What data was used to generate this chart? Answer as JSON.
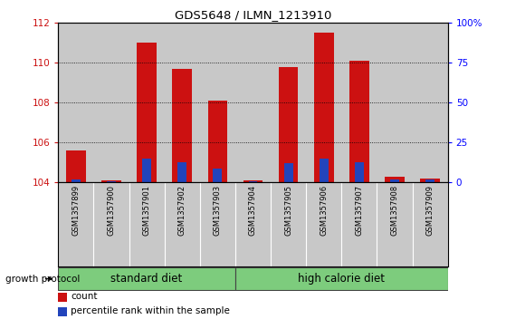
{
  "title": "GDS5648 / ILMN_1213910",
  "samples": [
    "GSM1357899",
    "GSM1357900",
    "GSM1357901",
    "GSM1357902",
    "GSM1357903",
    "GSM1357904",
    "GSM1357905",
    "GSM1357906",
    "GSM1357907",
    "GSM1357908",
    "GSM1357909"
  ],
  "count_values": [
    105.6,
    104.1,
    111.0,
    109.7,
    108.1,
    104.1,
    109.8,
    111.5,
    110.1,
    104.3,
    104.2
  ],
  "percentile_values": [
    2,
    1,
    15,
    13,
    9,
    1,
    12,
    15,
    13,
    2,
    2
  ],
  "ylim_left": [
    104,
    112
  ],
  "ylim_right": [
    0,
    100
  ],
  "yticks_left": [
    104,
    106,
    108,
    110,
    112
  ],
  "yticks_right": [
    0,
    25,
    50,
    75,
    100
  ],
  "ytick_labels_right": [
    "0",
    "25",
    "50",
    "75",
    "100%"
  ],
  "bar_bottom": 104,
  "count_color": "#cc1111",
  "percentile_color": "#2244bb",
  "bg_color_samples": "#c8c8c8",
  "group1_label": "standard diet",
  "group2_label": "high calorie diet",
  "group1_indices": [
    0,
    1,
    2,
    3,
    4
  ],
  "group2_indices": [
    5,
    6,
    7,
    8,
    9,
    10
  ],
  "growth_protocol_label": "growth protocol",
  "legend_count_label": "count",
  "legend_percentile_label": "percentile rank within the sample",
  "group_bar_color": "#7dcc7d",
  "group_bar_border": "#444444",
  "bar_width": 0.55,
  "percentile_bar_width": 0.25
}
